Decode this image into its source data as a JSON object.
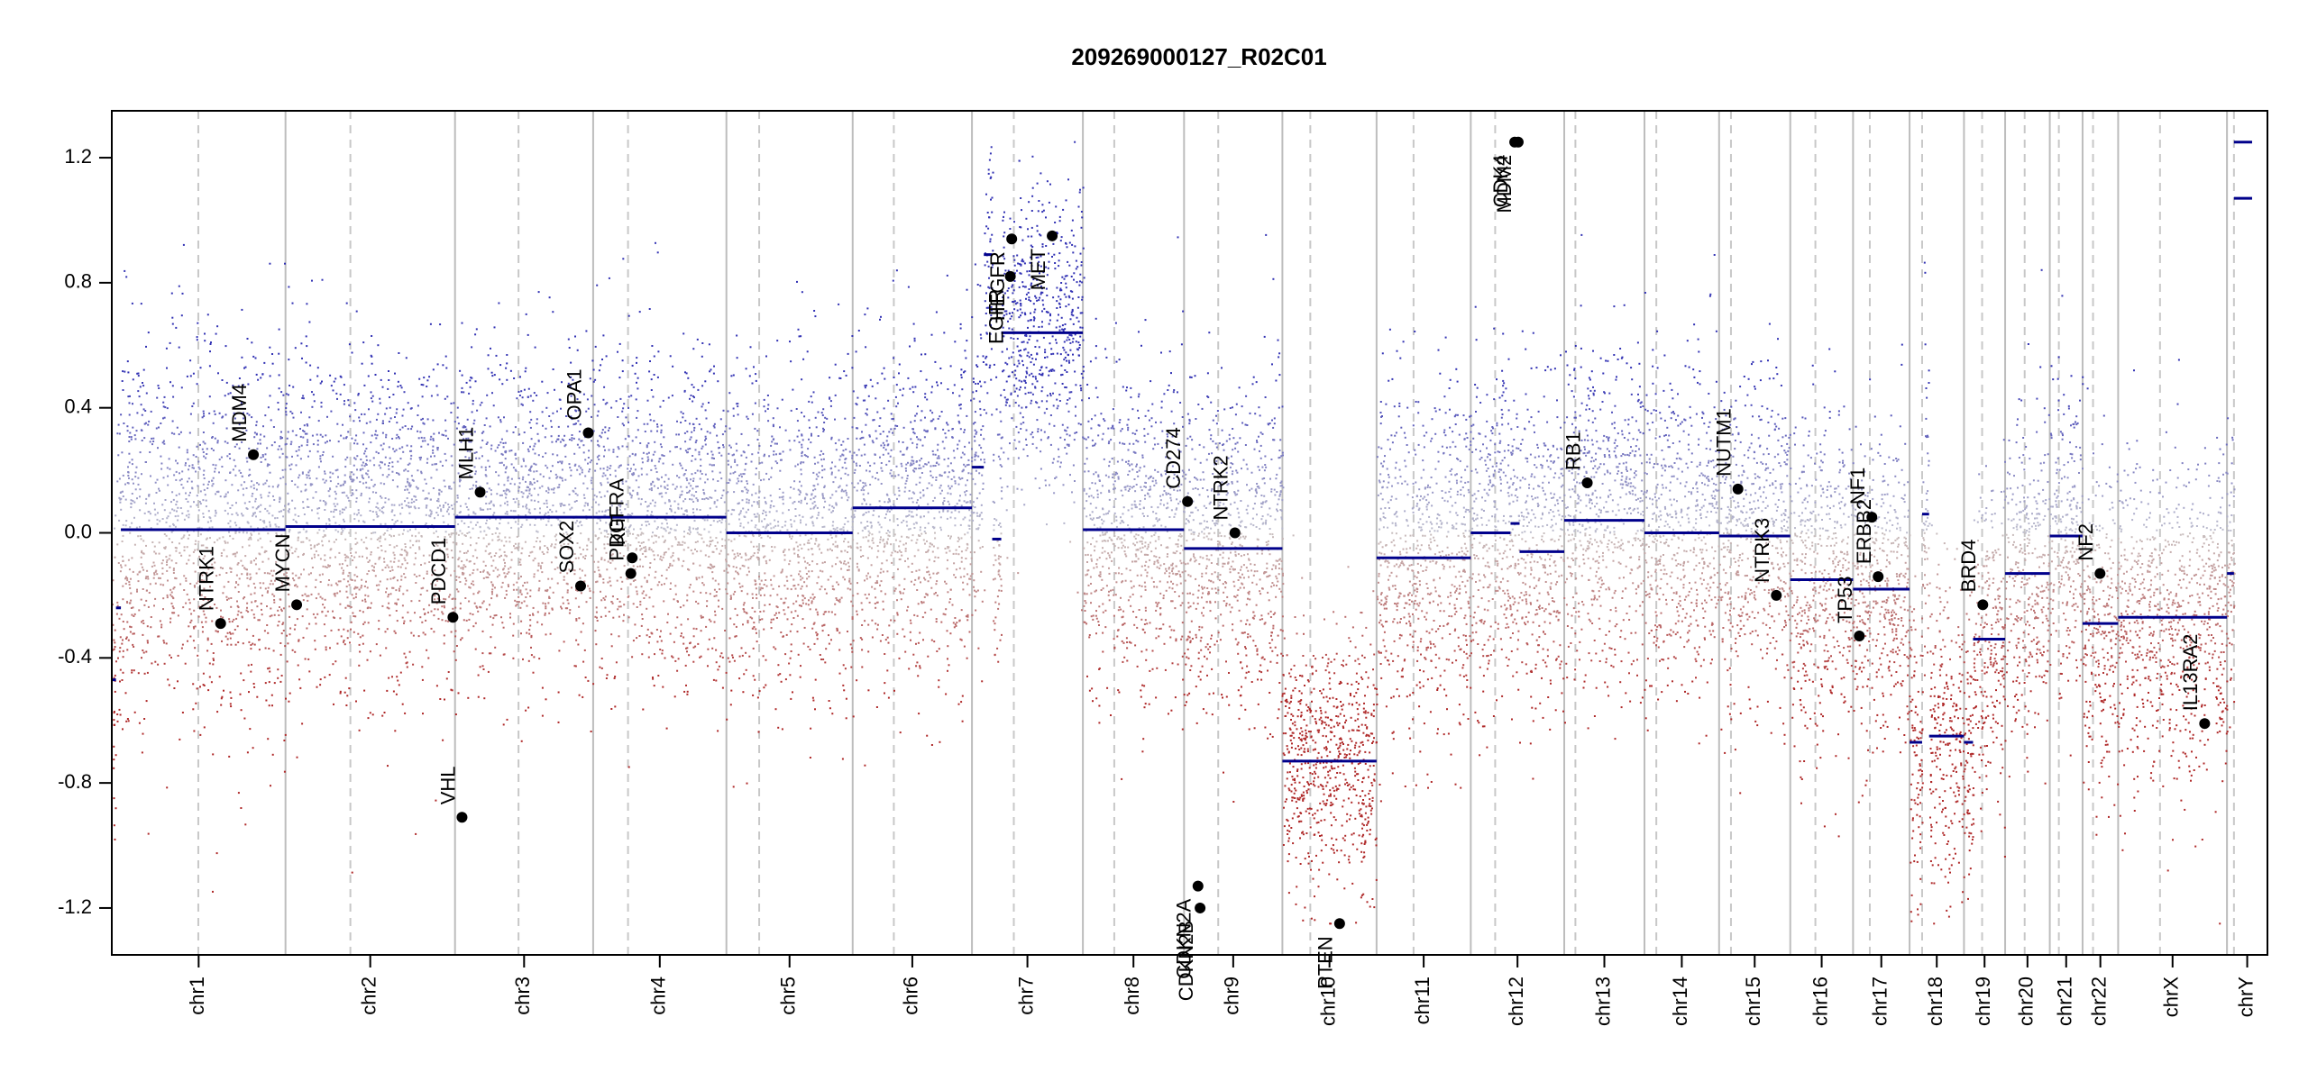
{
  "chart_data": {
    "type": "scatter",
    "title": "209269000127_R02C01",
    "xlabel": "",
    "ylabel": "",
    "ylim": [
      -1.35,
      1.35
    ],
    "clip": [
      -1.25,
      1.25
    ],
    "y_ticks": [
      -1.2,
      -0.8,
      -0.4,
      0.0,
      0.4,
      0.8,
      1.2
    ],
    "y_tick_labels": [
      "-1.2",
      "-0.8",
      "-0.4",
      "0.0",
      "0.4",
      "0.8",
      "1.2"
    ],
    "grid": "chromosome boundaries (solid grey) and centromeres (dashed grey)",
    "colors": {
      "gain": "#00008B",
      "loss": "#8B0000",
      "segment": "#00008B",
      "probe_gain": "#3232B4",
      "probe_loss": "#B42828"
    },
    "chromosomes": [
      {
        "name": "chr1",
        "start": 0,
        "end": 249,
        "centromere": 124,
        "spread": 0.29,
        "segments": [
          [
            0,
            6,
            -0.47
          ],
          [
            6,
            13,
            -0.24
          ],
          [
            13,
            249,
            0.01
          ]
        ]
      },
      {
        "name": "chr2",
        "start": 249,
        "end": 492,
        "centromere": 342,
        "spread": 0.27,
        "segments": [
          [
            249,
            492,
            0.02
          ]
        ]
      },
      {
        "name": "chr3",
        "start": 492,
        "end": 690,
        "centromere": 583,
        "spread": 0.26,
        "segments": [
          [
            492,
            690,
            0.05
          ]
        ]
      },
      {
        "name": "chr4",
        "start": 690,
        "end": 881,
        "centromere": 740,
        "spread": 0.26,
        "segments": [
          [
            690,
            881,
            0.05
          ]
        ]
      },
      {
        "name": "chr5",
        "start": 881,
        "end": 1062,
        "centromere": 928,
        "spread": 0.26,
        "segments": [
          [
            881,
            1062,
            0.0
          ]
        ]
      },
      {
        "name": "chr6",
        "start": 1062,
        "end": 1233,
        "centromere": 1121,
        "spread": 0.26,
        "segments": [
          [
            1062,
            1233,
            0.08
          ]
        ]
      },
      {
        "name": "chr7",
        "start": 1233,
        "end": 1392,
        "centromere": 1293,
        "spread": 0.24,
        "segments": [
          [
            1233,
            1250,
            0.21
          ],
          [
            1250,
            1262,
            0.89
          ],
          [
            1262,
            1275,
            -0.02
          ],
          [
            1275,
            1392,
            0.64
          ]
        ]
      },
      {
        "name": "chr8",
        "start": 1392,
        "end": 1537,
        "centromere": 1437,
        "spread": 0.26,
        "segments": [
          [
            1392,
            1537,
            0.01
          ]
        ]
      },
      {
        "name": "chr9",
        "start": 1537,
        "end": 1678,
        "centromere": 1586,
        "spread": 0.26,
        "segments": [
          [
            1537,
            1678,
            -0.05
          ]
        ]
      },
      {
        "name": "chr10",
        "start": 1678,
        "end": 1813,
        "centromere": 1718,
        "spread": 0.2,
        "segments": [
          [
            1678,
            1813,
            -0.73
          ]
        ]
      },
      {
        "name": "chr11",
        "start": 1813,
        "end": 1948,
        "centromere": 1866,
        "spread": 0.26,
        "segments": [
          [
            1813,
            1948,
            -0.08
          ]
        ]
      },
      {
        "name": "chr12",
        "start": 1948,
        "end": 2082,
        "centromere": 1983,
        "spread": 0.26,
        "segments": [
          [
            1948,
            2005,
            0.0
          ],
          [
            2005,
            2018,
            0.03
          ],
          [
            2018,
            2082,
            -0.06
          ]
        ]
      },
      {
        "name": "chr13",
        "start": 2082,
        "end": 2197,
        "centromere": 2098,
        "spread": 0.26,
        "segments": [
          [
            2082,
            2197,
            0.04
          ]
        ]
      },
      {
        "name": "chr14",
        "start": 2197,
        "end": 2304,
        "centromere": 2214,
        "spread": 0.26,
        "segments": [
          [
            2197,
            2304,
            0.0
          ]
        ]
      },
      {
        "name": "chr15",
        "start": 2304,
        "end": 2406,
        "centromere": 2321,
        "spread": 0.26,
        "segments": [
          [
            2304,
            2406,
            -0.01
          ]
        ]
      },
      {
        "name": "chr16",
        "start": 2406,
        "end": 2496,
        "centromere": 2442,
        "spread": 0.26,
        "segments": [
          [
            2406,
            2496,
            -0.15
          ]
        ]
      },
      {
        "name": "chr17",
        "start": 2496,
        "end": 2577,
        "centromere": 2520,
        "spread": 0.26,
        "segments": [
          [
            2496,
            2577,
            -0.18
          ]
        ]
      },
      {
        "name": "chr18",
        "start": 2577,
        "end": 2655,
        "centromere": 2595,
        "spread": 0.26,
        "segments": [
          [
            2577,
            2595,
            -0.67
          ],
          [
            2595,
            2605,
            0.06
          ],
          [
            2605,
            2655,
            -0.65
          ]
        ]
      },
      {
        "name": "chr19",
        "start": 2655,
        "end": 2714,
        "centromere": 2681,
        "spread": 0.24,
        "segments": [
          [
            2655,
            2668,
            -0.67
          ],
          [
            2668,
            2714,
            -0.34
          ]
        ]
      },
      {
        "name": "chr20",
        "start": 2714,
        "end": 2778,
        "centromere": 2742,
        "spread": 0.26,
        "segments": [
          [
            2714,
            2778,
            -0.13
          ]
        ]
      },
      {
        "name": "chr21",
        "start": 2778,
        "end": 2825,
        "centromere": 2791,
        "spread": 0.26,
        "segments": [
          [
            2778,
            2825,
            -0.01
          ]
        ]
      },
      {
        "name": "chr22",
        "start": 2825,
        "end": 2876,
        "centromere": 2840,
        "spread": 0.26,
        "segments": [
          [
            2825,
            2876,
            -0.29
          ]
        ]
      },
      {
        "name": "chrX",
        "start": 2876,
        "end": 3032,
        "centromere": 2936,
        "spread": 0.26,
        "segments": [
          [
            2876,
            3032,
            -0.27
          ]
        ]
      },
      {
        "name": "chrY",
        "start": 3032,
        "end": 3090,
        "centromere": 3042,
        "spread": 0.22,
        "segments": [
          [
            3032,
            3042,
            -0.13
          ],
          [
            3042,
            3068,
            1.25
          ],
          [
            3042,
            3068,
            1.07
          ]
        ]
      }
    ],
    "genes": [
      {
        "name": "NTRK1",
        "x": 156,
        "y": -0.29
      },
      {
        "name": "MDM4",
        "x": 203,
        "y": 0.25
      },
      {
        "name": "MYCN",
        "x": 265,
        "y": -0.23
      },
      {
        "name": "PDCD1",
        "x": 489,
        "y": -0.27
      },
      {
        "name": "VHL",
        "x": 502,
        "y": -0.91
      },
      {
        "name": "MLH1",
        "x": 528,
        "y": 0.13
      },
      {
        "name": "SOX2",
        "x": 672,
        "y": -0.17
      },
      {
        "name": "OPA1",
        "x": 683,
        "y": 0.32
      },
      {
        "name": "PDGFRA",
        "x": 744,
        "y": -0.13
      },
      {
        "name": "KIT",
        "x": 746,
        "y": -0.08
      },
      {
        "name": "EGFR",
        "x": 1288,
        "y": 0.82
      },
      {
        "name": "MET",
        "x": 1348,
        "y": 0.95
      },
      {
        "name": "HEGFR",
        "x": 1290,
        "y": 0.94
      },
      {
        "name": "CD274",
        "x": 1542,
        "y": 0.1
      },
      {
        "name": "CDKN2A",
        "x": 1557,
        "y": -1.13
      },
      {
        "name": "CDKN2B",
        "x": 1560,
        "y": -1.2
      },
      {
        "name": "NTRK2",
        "x": 1610,
        "y": 0.0
      },
      {
        "name": "PTEN",
        "x": 1760,
        "y": -1.25
      },
      {
        "name": "CDK4",
        "x": 2011,
        "y": 1.25
      },
      {
        "name": "MDM2",
        "x": 2016,
        "y": 1.25
      },
      {
        "name": "RB1",
        "x": 2115,
        "y": 0.16
      },
      {
        "name": "NUTM1",
        "x": 2331,
        "y": 0.14
      },
      {
        "name": "NTRK3",
        "x": 2386,
        "y": -0.2
      },
      {
        "name": "TP53",
        "x": 2505,
        "y": -0.33
      },
      {
        "name": "NF1",
        "x": 2523,
        "y": 0.05
      },
      {
        "name": "ERBB2",
        "x": 2532,
        "y": -0.14
      },
      {
        "name": "BRD4",
        "x": 2682,
        "y": -0.23
      },
      {
        "name": "NF2",
        "x": 2850,
        "y": -0.13
      },
      {
        "name": "IL13RA2",
        "x": 3000,
        "y": -0.61
      }
    ]
  }
}
